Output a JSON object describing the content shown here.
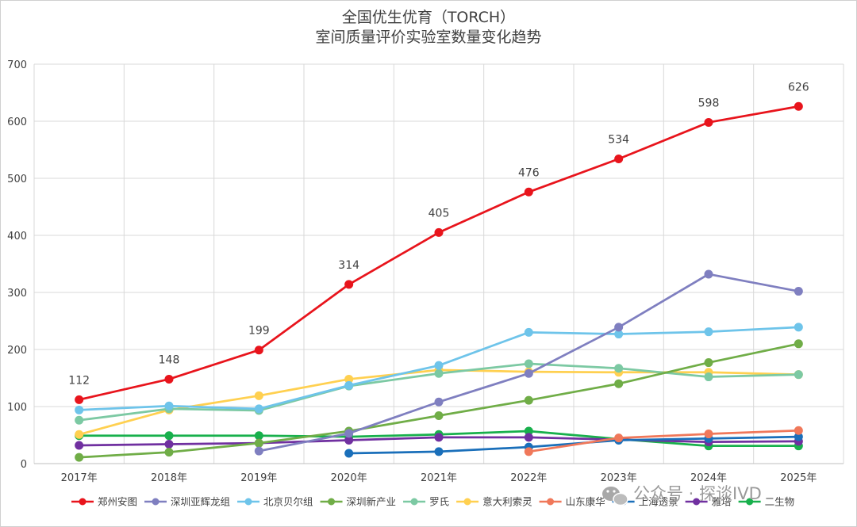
{
  "chart_data": {
    "type": "line",
    "title": [
      "全国优生优育（TORCH）",
      "室间质量评价实验室数量变化趋势"
    ],
    "xlabel": "",
    "ylabel": "",
    "categories": [
      "2017年",
      "2018年",
      "2019年",
      "2020年",
      "2021年",
      "2022年",
      "2023年",
      "2024年",
      "2025年"
    ],
    "ylim": [
      0,
      700
    ],
    "yticks": [
      0,
      100,
      200,
      300,
      400,
      500,
      600,
      700
    ],
    "grid": true,
    "legend_position": "bottom",
    "series": [
      {
        "name": "郑州安图",
        "color": "#e8141c",
        "values": [
          112,
          148,
          199,
          314,
          405,
          476,
          534,
          598,
          626
        ],
        "labels": [
          "112",
          "148",
          "199",
          "314",
          "405",
          "476",
          "534",
          "598",
          "626"
        ]
      },
      {
        "name": "深圳亚辉龙组",
        "color": "#7f7fc0",
        "values": [
          null,
          null,
          22,
          53,
          108,
          158,
          239,
          332,
          302
        ]
      },
      {
        "name": "北京贝尔组",
        "color": "#6ec4ea",
        "values": [
          94,
          101,
          96,
          137,
          172,
          230,
          227,
          231,
          239
        ]
      },
      {
        "name": "深圳新产业",
        "color": "#70ad47",
        "values": [
          11,
          20,
          36,
          57,
          84,
          111,
          140,
          177,
          210
        ]
      },
      {
        "name": "罗氏",
        "color": "#7cc9a3",
        "values": [
          76,
          96,
          93,
          136,
          158,
          175,
          167,
          152,
          156
        ]
      },
      {
        "name": "意大利索灵",
        "color": "#ffd050",
        "values": [
          51,
          94,
          119,
          148,
          164,
          161,
          160,
          160,
          156
        ]
      },
      {
        "name": "山东康华",
        "color": "#f0785a",
        "values": [
          null,
          null,
          null,
          null,
          null,
          21,
          45,
          52,
          58
        ]
      },
      {
        "name": "上海透景",
        "color": "#1a6fba",
        "values": [
          null,
          null,
          null,
          18,
          21,
          29,
          41,
          44,
          47
        ]
      },
      {
        "name": "雅培",
        "color": "#7030a0",
        "values": [
          32,
          34,
          36,
          41,
          46,
          46,
          42,
          38,
          39
        ]
      },
      {
        "name": "二生物",
        "color": "#18b04c",
        "values": [
          49,
          49,
          49,
          47,
          51,
          57,
          43,
          31,
          31
        ]
      }
    ]
  },
  "watermark": {
    "text": "公众号 · 探谈IVD",
    "icon": "wechat-icon"
  }
}
